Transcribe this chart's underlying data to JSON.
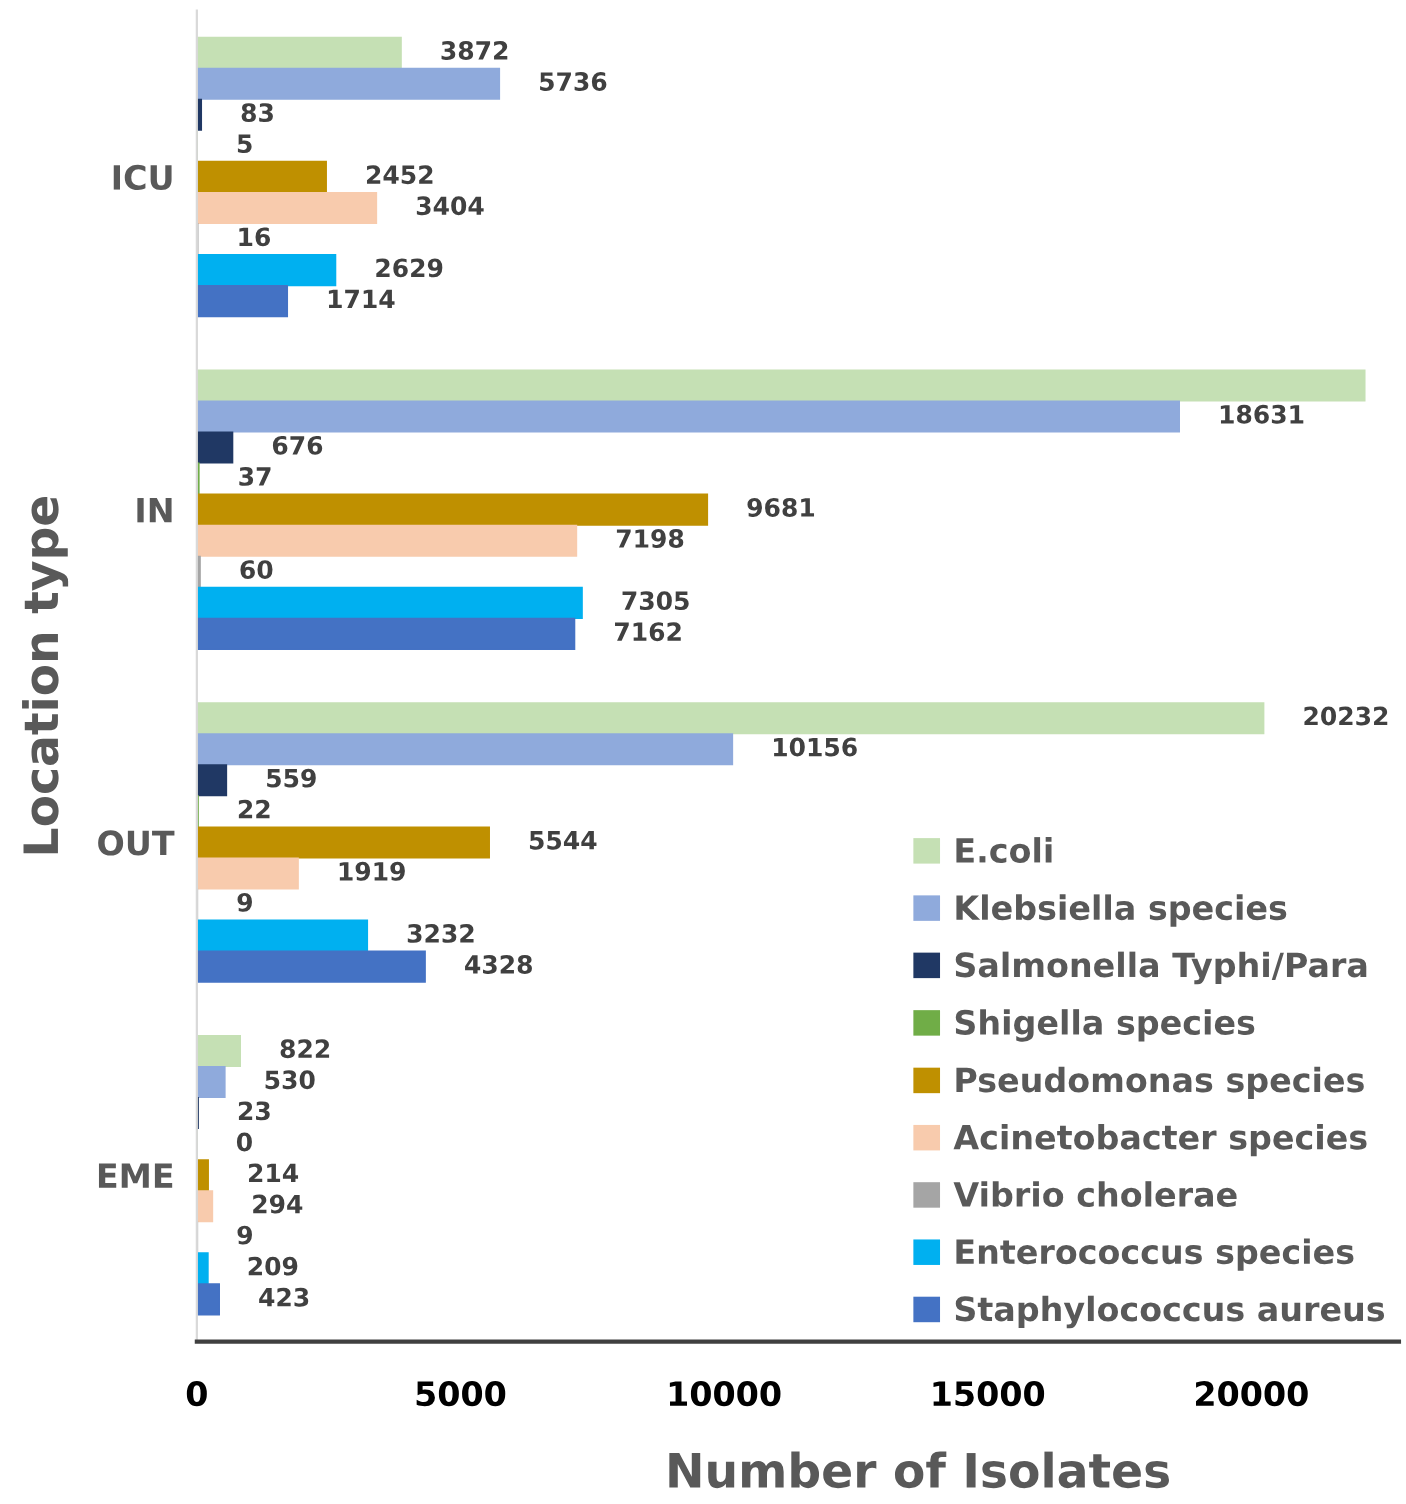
{
  "chart_data": {
    "type": "bar",
    "orientation": "horizontal",
    "xlabel": "Number of Isolates",
    "ylabel": "Location type",
    "categories": [
      "ICU",
      "IN",
      "OUT",
      "EME"
    ],
    "xlim": [
      0,
      22800
    ],
    "xticks": [
      0,
      5000,
      10000,
      15000,
      20000
    ],
    "grid": false,
    "legend": "bottom right",
    "series": [
      {
        "name": "E.coli",
        "color": "#c5e0b4",
        "values": [
          3872,
          22150,
          20232,
          822
        ],
        "value_labels": [
          "3872",
          null,
          "20232",
          "822"
        ]
      },
      {
        "name": "Klebsiella species",
        "color": "#8faadc",
        "values": [
          5736,
          18631,
          10156,
          530
        ],
        "value_labels": [
          "5736",
          "18631",
          "10156",
          "530"
        ]
      },
      {
        "name": "Salmonella Typhi/Para",
        "color": "#203864",
        "values": [
          83,
          676,
          559,
          23
        ],
        "value_labels": [
          "83",
          "676",
          "559",
          "23"
        ]
      },
      {
        "name": "Shigella species",
        "color": "#70ad47",
        "values": [
          5,
          37,
          22,
          0
        ],
        "value_labels": [
          "5",
          "37",
          "22",
          "0"
        ]
      },
      {
        "name": "Pseudomonas species",
        "color": "#bf9000",
        "values": [
          2452,
          9681,
          5544,
          214
        ],
        "value_labels": [
          "2452",
          "9681",
          "5544",
          "214"
        ]
      },
      {
        "name": "Acinetobacter species",
        "color": "#f8cbad",
        "values": [
          3404,
          7198,
          1919,
          294
        ],
        "value_labels": [
          "3404",
          "7198",
          "1919",
          "294"
        ]
      },
      {
        "name": "Vibrio cholerae",
        "color": "#a5a5a5",
        "values": [
          16,
          60,
          9,
          9
        ],
        "value_labels": [
          "16",
          "60",
          "9",
          "9"
        ]
      },
      {
        "name": "Enterococcus species",
        "color": "#00b0f0",
        "values": [
          2629,
          7305,
          3232,
          209
        ],
        "value_labels": [
          "2629",
          "7305",
          "3232",
          "209"
        ]
      },
      {
        "name": "Staphylococcus aureus",
        "color": "#4472c4",
        "values": [
          1714,
          7162,
          4328,
          423
        ],
        "value_labels": [
          "1714",
          "7162",
          "4328",
          "423"
        ]
      }
    ]
  }
}
